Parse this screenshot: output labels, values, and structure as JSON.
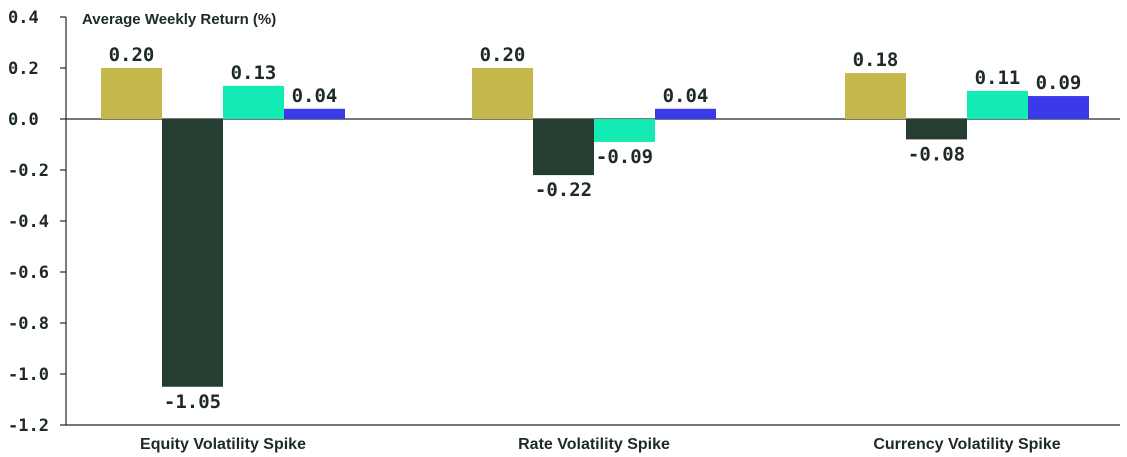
{
  "chart_data": {
    "type": "bar",
    "title": "",
    "ylabel": "Average Weekly Return (%)",
    "xlabel": "",
    "categories": [
      "Equity Volatility Spike",
      "Rate Volatility Spike",
      "Currency Volatility Spike"
    ],
    "series": [
      {
        "values": [
          0.2,
          0.2,
          0.18
        ],
        "color": "#c4b84c"
      },
      {
        "values": [
          -1.05,
          -0.22,
          -0.08
        ],
        "color": "#263d31"
      },
      {
        "values": [
          0.13,
          -0.09,
          0.11
        ],
        "color": "#14ebb4"
      },
      {
        "values": [
          0.04,
          0.04,
          0.09
        ],
        "color": "#3b3ae8"
      }
    ],
    "data_labels": [
      [
        "0.20",
        "-1.05",
        "0.13",
        "0.04"
      ],
      [
        "0.20",
        "-0.22",
        "-0.09",
        "0.04"
      ],
      [
        "0.18",
        "-0.08",
        "0.11",
        "0.09"
      ]
    ],
    "ylim": [
      -1.2,
      0.4
    ],
    "yticks": [
      0.4,
      0.2,
      0.0,
      -0.2,
      -0.4,
      -0.6,
      -0.8,
      -1.0,
      -1.2
    ],
    "ytick_labels": [
      "0.4",
      "0.2",
      "0.0",
      "-0.2",
      "-0.4",
      "-0.6",
      "-0.8",
      "-1.0",
      "-1.2"
    ],
    "grid": false,
    "legend": "none",
    "axis_color": "#1e2a24"
  }
}
